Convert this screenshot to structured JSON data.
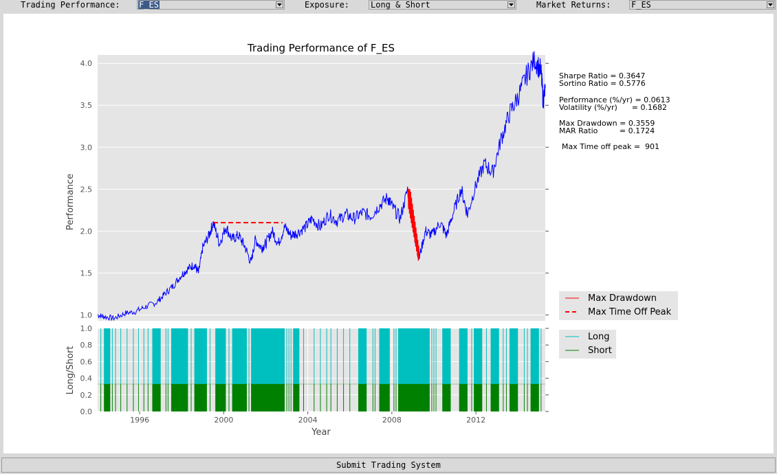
{
  "toolbar": {
    "trading_performance_label": "Trading Performance:",
    "trading_performance_value": "F_ES",
    "exposure_label": "Exposure:",
    "exposure_value": "Long & Short",
    "market_returns_label": "Market Returns:",
    "market_returns_value": "F_ES"
  },
  "submit_label": "Submit Trading System",
  "colors": {
    "equity": "#0000ff",
    "drawdown": "#ff0000",
    "peak": "#ff0000",
    "long": "#00bfbf",
    "short": "#008000",
    "axes_bg": "#e5e5e5"
  },
  "stats": {
    "sharpe": "Sharpe Ratio = 0.3647",
    "sortino": "Sortino Ratio = 0.5776",
    "performance": "Performance (%/yr) = 0.0613",
    "volatility": "Volatility (%/yr)      = 0.1682",
    "max_drawdown": "Max Drawdown = 0.3559",
    "mar_ratio": "MAR Ratio         = 0.1724",
    "max_time_off_peak": "Max Time off peak =  901"
  },
  "chart_data": [
    {
      "type": "line",
      "title": "Trading Performance of F_ES",
      "xlabel": "",
      "ylabel": "Performance",
      "xlim": [
        1994.0,
        2015.3
      ],
      "ylim": [
        0.93,
        4.1
      ],
      "yticks": [
        "1.0",
        "1.5",
        "2.0",
        "2.5",
        "3.0",
        "3.5",
        "4.0"
      ],
      "grid": true,
      "legend": {
        "position": "right",
        "entries": [
          "Max Drawdown",
          "Max Time Off Peak"
        ]
      },
      "series": [
        {
          "name": "Performance",
          "points": [
            [
              1994.0,
              1.0
            ],
            [
              1994.3,
              0.98
            ],
            [
              1994.8,
              0.96
            ],
            [
              1995.3,
              1.02
            ],
            [
              1995.8,
              1.04
            ],
            [
              1996.3,
              1.1
            ],
            [
              1996.8,
              1.15
            ],
            [
              1997.2,
              1.25
            ],
            [
              1997.6,
              1.35
            ],
            [
              1998.0,
              1.48
            ],
            [
              1998.3,
              1.55
            ],
            [
              1998.6,
              1.6
            ],
            [
              1998.8,
              1.5
            ],
            [
              1999.0,
              1.8
            ],
            [
              1999.3,
              1.95
            ],
            [
              1999.5,
              2.1
            ],
            [
              1999.8,
              1.85
            ],
            [
              2000.1,
              2.05
            ],
            [
              2000.4,
              1.9
            ],
            [
              2000.7,
              1.95
            ],
            [
              2001.0,
              1.82
            ],
            [
              2001.3,
              1.62
            ],
            [
              2001.5,
              1.9
            ],
            [
              2001.8,
              1.8
            ],
            [
              2002.0,
              1.85
            ],
            [
              2002.3,
              2.0
            ],
            [
              2002.6,
              1.85
            ],
            [
              2002.9,
              2.05
            ],
            [
              2003.2,
              1.95
            ],
            [
              2003.5,
              1.98
            ],
            [
              2003.9,
              2.05
            ],
            [
              2004.2,
              2.15
            ],
            [
              2004.6,
              2.05
            ],
            [
              2005.0,
              2.2
            ],
            [
              2005.4,
              2.12
            ],
            [
              2005.8,
              2.2
            ],
            [
              2006.2,
              2.15
            ],
            [
              2006.6,
              2.22
            ],
            [
              2007.0,
              2.18
            ],
            [
              2007.4,
              2.3
            ],
            [
              2007.8,
              2.4
            ],
            [
              2008.0,
              2.3
            ],
            [
              2008.4,
              2.15
            ],
            [
              2008.75,
              2.5
            ],
            [
              2009.0,
              2.05
            ],
            [
              2009.3,
              1.68
            ],
            [
              2009.6,
              2.0
            ],
            [
              2009.9,
              1.95
            ],
            [
              2010.3,
              2.1
            ],
            [
              2010.6,
              1.95
            ],
            [
              2010.9,
              2.2
            ],
            [
              2011.3,
              2.5
            ],
            [
              2011.6,
              2.2
            ],
            [
              2012.0,
              2.55
            ],
            [
              2012.4,
              2.8
            ],
            [
              2012.8,
              2.7
            ],
            [
              2013.2,
              3.1
            ],
            [
              2013.6,
              3.4
            ],
            [
              2014.0,
              3.6
            ],
            [
              2014.4,
              3.85
            ],
            [
              2014.8,
              4.05
            ],
            [
              2015.1,
              3.9
            ],
            [
              2015.2,
              3.55
            ],
            [
              2015.3,
              3.7
            ]
          ]
        }
      ],
      "drawdown": {
        "name": "Max Drawdown",
        "x": [
          2008.75,
          2009.3
        ],
        "min": 1.68,
        "peak": 2.5
      },
      "time_off_peak": {
        "name": "Max Time Off Peak",
        "x": [
          1999.5,
          2002.8
        ],
        "y": 2.1
      }
    },
    {
      "type": "bar",
      "ylabel": "Long/Short",
      "xlabel": "Year",
      "xlim": [
        1994.0,
        2015.3
      ],
      "ylim": [
        0.0,
        1.0
      ],
      "yticks": [
        "0.0",
        "0.2",
        "0.4",
        "0.6",
        "0.8",
        "1.0"
      ],
      "xticks": [
        "1996",
        "2000",
        "2004",
        "2008",
        "2012"
      ],
      "xtick_values": [
        1996,
        2000,
        2004,
        2008,
        2012
      ],
      "legend": {
        "position": "right",
        "entries": [
          "Long",
          "Short"
        ]
      },
      "long_level": 1.0,
      "short_level": 0.33,
      "blocks": [
        [
          1994.3,
          1994.6
        ],
        [
          1996.6,
          1997.0
        ],
        [
          1997.5,
          1998.3
        ],
        [
          1998.6,
          1999.2
        ],
        [
          1999.6,
          2000.1
        ],
        [
          2000.4,
          2001.1
        ],
        [
          2001.3,
          2002.9
        ],
        [
          2003.3,
          2003.6
        ],
        [
          2006.4,
          2006.8
        ],
        [
          2007.4,
          2007.9
        ],
        [
          2008.3,
          2009.8
        ],
        [
          2010.4,
          2010.8
        ],
        [
          2011.2,
          2011.6
        ],
        [
          2011.9,
          2012.3
        ],
        [
          2012.7,
          2013.1
        ],
        [
          2013.6,
          2014.0
        ],
        [
          2014.6,
          2015.0
        ]
      ],
      "lines": [
        1994.15,
        1994.7,
        1994.85,
        1995.1,
        1995.4,
        1995.7,
        1995.95,
        1996.2,
        1996.4,
        1997.25,
        1997.35,
        1998.45,
        1999.35,
        2000.25,
        2001.2,
        2003.0,
        2003.1,
        2003.2,
        2003.8,
        2004.3,
        2004.6,
        2004.9,
        2005.1,
        2005.4,
        2005.7,
        2006.0,
        2007.1,
        2007.2,
        2008.1,
        2008.2,
        2009.9,
        2010.0,
        2010.1,
        2011.8,
        2012.5,
        2013.3,
        2013.45,
        2014.3,
        2014.45,
        2015.1
      ]
    }
  ]
}
